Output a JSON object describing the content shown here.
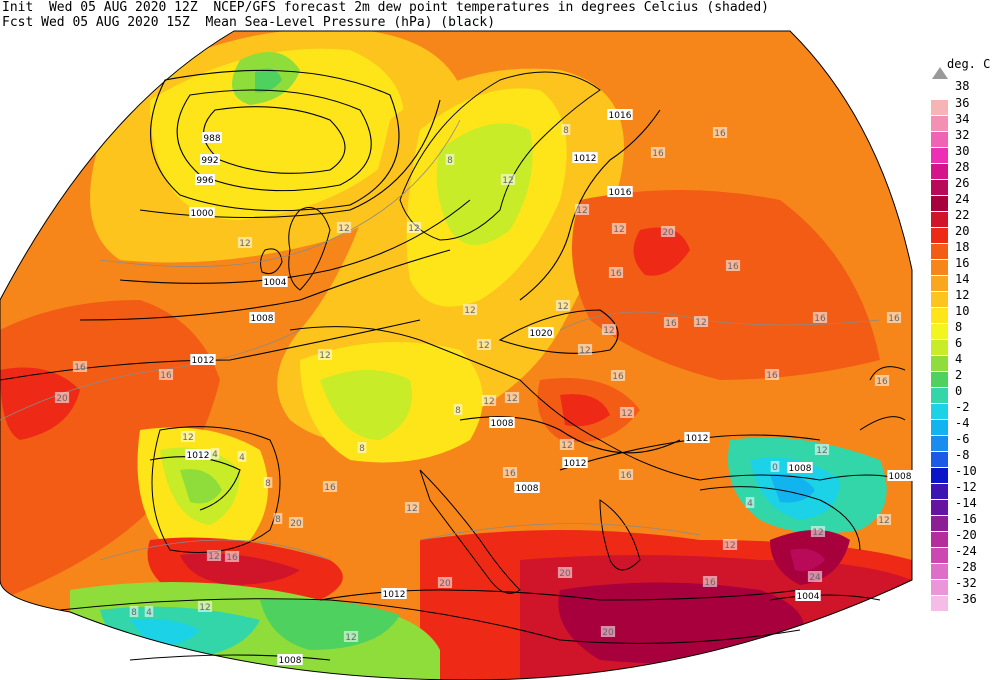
{
  "header": {
    "line1": "Init  Wed 05 AUG 2020 12Z  NCEP/GFS forecast 2m dew point temperatures in degrees Celcius (shaded)",
    "line2": "Fcst Wed 05 AUG 2020 15Z  Mean Sea-Level Pressure (hPa) (black)"
  },
  "legend": {
    "title": "deg. C",
    "top_label": "38",
    "bins": [
      {
        "label": "36",
        "color": "#f6b4b4"
      },
      {
        "label": "34",
        "color": "#f390b4"
      },
      {
        "label": "32",
        "color": "#f062b4"
      },
      {
        "label": "30",
        "color": "#ec2fb4"
      },
      {
        "label": "28",
        "color": "#d5148c"
      },
      {
        "label": "26",
        "color": "#b90a5a"
      },
      {
        "label": "24",
        "color": "#a8003c"
      },
      {
        "label": "22",
        "color": "#d0142a"
      },
      {
        "label": "20",
        "color": "#ee2a17"
      },
      {
        "label": "18",
        "color": "#f25c14"
      },
      {
        "label": "16",
        "color": "#f7861a"
      },
      {
        "label": "14",
        "color": "#faa61e"
      },
      {
        "label": "12",
        "color": "#fcc41c"
      },
      {
        "label": "10",
        "color": "#fde51a"
      },
      {
        "label": "8",
        "color": "#f2f51e"
      },
      {
        "label": "6",
        "color": "#c8ec28"
      },
      {
        "label": "4",
        "color": "#8fdd3a"
      },
      {
        "label": "2",
        "color": "#4fd160"
      },
      {
        "label": "0",
        "color": "#33d6a8"
      },
      {
        "label": "-2",
        "color": "#1cd2e6"
      },
      {
        "label": "-4",
        "color": "#12b4f0"
      },
      {
        "label": "-6",
        "color": "#1a8cf0"
      },
      {
        "label": "-8",
        "color": "#1a5ae6"
      },
      {
        "label": "-10",
        "color": "#0a14c8"
      },
      {
        "label": "-12",
        "color": "#3c14b4"
      },
      {
        "label": "-14",
        "color": "#6414a0"
      },
      {
        "label": "-16",
        "color": "#8c1e96"
      },
      {
        "label": "-20",
        "color": "#b42d9c"
      },
      {
        "label": "-24",
        "color": "#cc46b4"
      },
      {
        "label": "-28",
        "color": "#de6ec8"
      },
      {
        "label": "-32",
        "color": "#ec96da"
      },
      {
        "label": "-36",
        "color": "#f5bce8"
      }
    ]
  },
  "map_labels": {
    "isobars": [
      {
        "id": "iso-988",
        "text": "988"
      },
      {
        "id": "iso-992",
        "text": "992"
      },
      {
        "id": "iso-996",
        "text": "996"
      },
      {
        "id": "iso-1000",
        "text": "1000"
      },
      {
        "id": "iso-1004-a",
        "text": "1004"
      },
      {
        "id": "iso-1008-a",
        "text": "1008"
      },
      {
        "id": "iso-1012-a",
        "text": "1012"
      },
      {
        "id": "iso-1016-a",
        "text": "1016"
      },
      {
        "id": "iso-1020",
        "text": "1020"
      },
      {
        "id": "iso-1016-b",
        "text": "1016"
      },
      {
        "id": "iso-1012-b",
        "text": "1012"
      },
      {
        "id": "iso-1012-c",
        "text": "1012"
      },
      {
        "id": "iso-1008-b",
        "text": "1008"
      },
      {
        "id": "iso-1012-d",
        "text": "1012"
      },
      {
        "id": "iso-1008-c",
        "text": "1008"
      },
      {
        "id": "iso-1012-e",
        "text": "1012"
      },
      {
        "id": "iso-1012-f",
        "text": "1012"
      },
      {
        "id": "iso-1008-d",
        "text": "1008"
      },
      {
        "id": "iso-1004-b",
        "text": "1004"
      },
      {
        "id": "iso-1008-e",
        "text": "1008"
      },
      {
        "id": "iso-1008-f",
        "text": "1008"
      }
    ],
    "dewpoint": [
      {
        "id": "dp-16-a",
        "text": "16"
      },
      {
        "id": "dp-16-b",
        "text": "16"
      },
      {
        "id": "dp-20-a",
        "text": "20"
      },
      {
        "id": "dp-16-c",
        "text": "16"
      },
      {
        "id": "dp-16-d",
        "text": "16"
      },
      {
        "id": "dp-12-a",
        "text": "12"
      },
      {
        "id": "dp-16-e",
        "text": "16"
      },
      {
        "id": "dp-12-b",
        "text": "12"
      },
      {
        "id": "dp-16-f",
        "text": "16"
      },
      {
        "id": "dp-16-g",
        "text": "16"
      },
      {
        "id": "dp-12-c",
        "text": "12"
      },
      {
        "id": "dp-12-d",
        "text": "12"
      },
      {
        "id": "dp-12-e",
        "text": "12"
      },
      {
        "id": "dp-8-a",
        "text": "8"
      },
      {
        "id": "dp-12-f",
        "text": "12"
      },
      {
        "id": "dp-12-g",
        "text": "12"
      },
      {
        "id": "dp-20-b",
        "text": "20"
      },
      {
        "id": "dp-16-h",
        "text": "16"
      },
      {
        "id": "dp-12-h",
        "text": "12"
      },
      {
        "id": "dp-8-b",
        "text": "8"
      },
      {
        "id": "dp-20-c",
        "text": "20"
      },
      {
        "id": "dp-12-i",
        "text": "12"
      },
      {
        "id": "dp-20-d",
        "text": "20"
      },
      {
        "id": "dp-20-e",
        "text": "20"
      },
      {
        "id": "dp-24-a",
        "text": "24"
      },
      {
        "id": "dp-16-i",
        "text": "16"
      },
      {
        "id": "dp-12-j",
        "text": "12"
      },
      {
        "id": "dp-0-a",
        "text": "0"
      },
      {
        "id": "dp-4-a",
        "text": "4"
      },
      {
        "id": "dp-12-k",
        "text": "12"
      },
      {
        "id": "dp-16-j",
        "text": "16"
      },
      {
        "id": "dp-12-l",
        "text": "12"
      },
      {
        "id": "dp-12-m",
        "text": "12"
      },
      {
        "id": "dp-8-c",
        "text": "8"
      },
      {
        "id": "dp-12-n",
        "text": "12"
      },
      {
        "id": "dp-8-d",
        "text": "8"
      },
      {
        "id": "dp-4-b",
        "text": "4"
      },
      {
        "id": "dp-12-o",
        "text": "12"
      },
      {
        "id": "dp-12-p",
        "text": "12"
      },
      {
        "id": "dp-8-e",
        "text": "8"
      },
      {
        "id": "dp-8-f",
        "text": "8"
      },
      {
        "id": "dp-4-c",
        "text": "4"
      },
      {
        "id": "dp-12-q",
        "text": "12"
      },
      {
        "id": "dp-4-d",
        "text": "4"
      },
      {
        "id": "dp-12-r",
        "text": "12"
      },
      {
        "id": "dp-16-k",
        "text": "16"
      },
      {
        "id": "dp-12-s",
        "text": "12"
      },
      {
        "id": "dp-16-l",
        "text": "16"
      },
      {
        "id": "dp-12-t",
        "text": "12"
      },
      {
        "id": "dp-16-m",
        "text": "16"
      },
      {
        "id": "dp-12-u",
        "text": "12"
      },
      {
        "id": "dp-8-g",
        "text": "8"
      },
      {
        "id": "dp-16-n",
        "text": "16"
      },
      {
        "id": "dp-12-v",
        "text": "12"
      },
      {
        "id": "dp-12-w",
        "text": "12"
      },
      {
        "id": "dp-16-o",
        "text": "16"
      },
      {
        "id": "dp-20-f",
        "text": "20"
      },
      {
        "id": "dp-16-p",
        "text": "16"
      },
      {
        "id": "dp-12-x",
        "text": "12"
      },
      {
        "id": "dp-12-y",
        "text": "12"
      },
      {
        "id": "dp-12-z",
        "text": "12"
      },
      {
        "id": "dp-16-q",
        "text": "16"
      }
    ]
  },
  "colors": {
    "coast": "#000000",
    "isobar": "#000000",
    "dewpoint_contour": "#8a8a8a",
    "background": "#ffffff"
  }
}
